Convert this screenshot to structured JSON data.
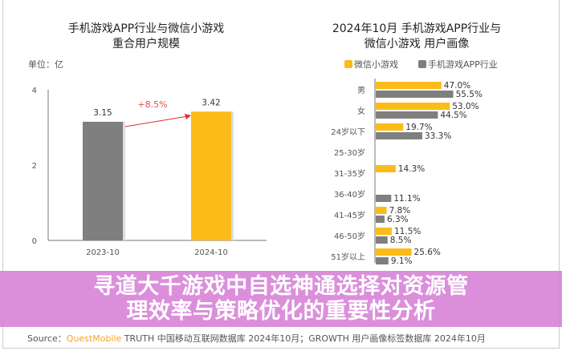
{
  "banner": {
    "line1": "寻道大千游戏中自选神通选择对资源管",
    "line2": "理效率与策略优化的重要性分析"
  },
  "source": {
    "prefix": "Source：",
    "brand": "QuestMobile",
    "text": " TRUTH 中国移动互联网数据库 2024年10月；GROWTH 用户画像标签数据库 2024年10月"
  },
  "colors": {
    "wechat": "#fbbc1a",
    "app": "#7f7f7f",
    "arrow": "#e03030",
    "banner": "#d680d6"
  },
  "chart_data": [
    {
      "type": "bar",
      "title": [
        "手机游戏APP行业与微信小游戏",
        "重合用户规模"
      ],
      "unit": "单位：亿",
      "categories": [
        "2023-10",
        "2024-10"
      ],
      "values": [
        3.15,
        3.42
      ],
      "value_labels": [
        "3.15",
        "3.42"
      ],
      "bar_colors": [
        "#7f7f7f",
        "#fbbc1a"
      ],
      "ylim": [
        0,
        4
      ],
      "yticks": [
        "0",
        "2",
        "4"
      ],
      "annotation": "+8.5%",
      "grid": false
    },
    {
      "type": "bar",
      "orientation": "horizontal",
      "title": [
        "2024年10月 手机游戏APP行业与",
        "微信小游戏 用户画像"
      ],
      "legend": "top",
      "categories": [
        "男",
        "女",
        "24岁以下",
        "25-30岁",
        "31-35岁",
        "36-40岁",
        "41-45岁",
        "46-50岁",
        "51岁以上"
      ],
      "series": [
        {
          "name": "微信小游戏",
          "color": "#fbbc1a",
          "values": [
            47.0,
            53.0,
            19.7,
            null,
            14.3,
            null,
            7.8,
            11.5,
            25.6
          ]
        },
        {
          "name": "手机游戏APP行业",
          "color": "#7f7f7f",
          "values": [
            55.5,
            44.5,
            33.3,
            null,
            null,
            11.1,
            6.3,
            8.5,
            9.1
          ]
        }
      ],
      "xlim": [
        0,
        60
      ],
      "grid": false
    }
  ]
}
